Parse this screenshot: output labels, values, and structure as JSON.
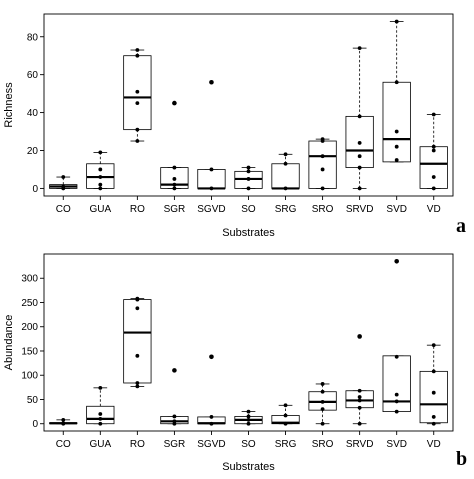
{
  "chart_data": [
    {
      "type": "box",
      "panel_label": "a",
      "xlabel": "Substrates",
      "ylabel": "Richness",
      "ylim": [
        -4,
        92
      ],
      "yticks": [
        0,
        20,
        40,
        60,
        80
      ],
      "grid": false,
      "categories": [
        "CO",
        "GUA",
        "RO",
        "SGR",
        "SGVD",
        "SO",
        "SRG",
        "SRO",
        "SRVD",
        "SVD",
        "VD"
      ],
      "boxes": [
        {
          "q1": 0,
          "median": 1,
          "q3": 2,
          "whisker_low": 0,
          "whisker_high": 6,
          "outliers": []
        },
        {
          "q1": 0,
          "median": 6,
          "q3": 13,
          "whisker_low": 0,
          "whisker_high": 19,
          "outliers": []
        },
        {
          "q1": 31,
          "median": 48,
          "q3": 70,
          "whisker_low": 25,
          "whisker_high": 73,
          "outliers": []
        },
        {
          "q1": 0,
          "median": 2,
          "q3": 11,
          "whisker_low": 0,
          "whisker_high": 11,
          "outliers": [
            45
          ]
        },
        {
          "q1": 0,
          "median": 0,
          "q3": 10,
          "whisker_low": 0,
          "whisker_high": 10,
          "outliers": [
            56
          ]
        },
        {
          "q1": 0,
          "median": 5,
          "q3": 9,
          "whisker_low": 0,
          "whisker_high": 11,
          "outliers": []
        },
        {
          "q1": 0,
          "median": 0,
          "q3": 13,
          "whisker_low": 0,
          "whisker_high": 18,
          "outliers": []
        },
        {
          "q1": 0,
          "median": 17,
          "q3": 25,
          "whisker_low": 0,
          "whisker_high": 26,
          "outliers": []
        },
        {
          "q1": 11,
          "median": 20,
          "q3": 38,
          "whisker_low": 0,
          "whisker_high": 74,
          "outliers": []
        },
        {
          "q1": 14,
          "median": 26,
          "q3": 56,
          "whisker_low": 14,
          "whisker_high": 88,
          "outliers": []
        },
        {
          "q1": 0,
          "median": 13,
          "q3": 22,
          "whisker_low": 0,
          "whisker_high": 39,
          "outliers": []
        }
      ],
      "points": [
        [
          0,
          1,
          6
        ],
        [
          0,
          2,
          6,
          10,
          19
        ],
        [
          25,
          31,
          45,
          51,
          70,
          73
        ],
        [
          0,
          2,
          5,
          11
        ],
        [
          0,
          10
        ],
        [
          0,
          5,
          9,
          11
        ],
        [
          0,
          13,
          18
        ],
        [
          0,
          10,
          17,
          25,
          26
        ],
        [
          0,
          11,
          17,
          24,
          38,
          74
        ],
        [
          15,
          22,
          30,
          56,
          88
        ],
        [
          0,
          6,
          20,
          22,
          39
        ]
      ]
    },
    {
      "type": "box",
      "panel_label": "b",
      "xlabel": "Substrates",
      "ylabel": "Abundance",
      "ylim": [
        -15,
        350
      ],
      "yticks": [
        0,
        50,
        100,
        150,
        200,
        250,
        300
      ],
      "grid": false,
      "categories": [
        "CO",
        "GUA",
        "RO",
        "SGR",
        "SGVD",
        "SO",
        "SRG",
        "SRO",
        "SRVD",
        "SVD",
        "VD"
      ],
      "boxes": [
        {
          "q1": 0,
          "median": 1,
          "q3": 2,
          "whisker_low": 0,
          "whisker_high": 8,
          "outliers": []
        },
        {
          "q1": 0,
          "median": 10,
          "q3": 36,
          "whisker_low": 0,
          "whisker_high": 74,
          "outliers": []
        },
        {
          "q1": 84,
          "median": 188,
          "q3": 256,
          "whisker_low": 77,
          "whisker_high": 258,
          "outliers": []
        },
        {
          "q1": 0,
          "median": 5,
          "q3": 15,
          "whisker_low": 0,
          "whisker_high": 15,
          "outliers": [
            110
          ]
        },
        {
          "q1": 0,
          "median": 1,
          "q3": 14,
          "whisker_low": 0,
          "whisker_high": 14,
          "outliers": [
            138
          ]
        },
        {
          "q1": 0,
          "median": 8,
          "q3": 15,
          "whisker_low": 0,
          "whisker_high": 25,
          "outliers": []
        },
        {
          "q1": 0,
          "median": 2,
          "q3": 17,
          "whisker_low": 0,
          "whisker_high": 38,
          "outliers": []
        },
        {
          "q1": 28,
          "median": 45,
          "q3": 66,
          "whisker_low": 0,
          "whisker_high": 82,
          "outliers": []
        },
        {
          "q1": 33,
          "median": 48,
          "q3": 68,
          "whisker_low": 0,
          "whisker_high": 68,
          "outliers": [
            180
          ]
        },
        {
          "q1": 25,
          "median": 46,
          "q3": 140,
          "whisker_low": 25,
          "whisker_high": 140,
          "outliers": [
            335
          ]
        },
        {
          "q1": 2,
          "median": 40,
          "q3": 108,
          "whisker_low": 0,
          "whisker_high": 162,
          "outliers": []
        }
      ],
      "points": [
        [
          0,
          1,
          8
        ],
        [
          0,
          10,
          20,
          74
        ],
        [
          77,
          84,
          140,
          238,
          256,
          258
        ],
        [
          0,
          5,
          15
        ],
        [
          0,
          14
        ],
        [
          0,
          8,
          15,
          25
        ],
        [
          0,
          17,
          38
        ],
        [
          0,
          30,
          45,
          66,
          82
        ],
        [
          0,
          33,
          48,
          55,
          68
        ],
        [
          25,
          46,
          60,
          138
        ],
        [
          0,
          14,
          64,
          108,
          162
        ]
      ]
    }
  ]
}
